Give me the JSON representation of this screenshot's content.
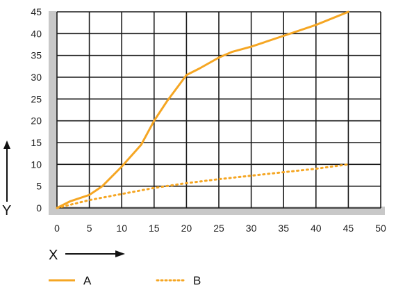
{
  "chart_data": {
    "type": "line",
    "xlabel": "X",
    "ylabel": "Y",
    "xlim": [
      0,
      50
    ],
    "ylim": [
      0,
      45
    ],
    "x_ticks": [
      0,
      5,
      10,
      15,
      20,
      25,
      30,
      35,
      40,
      45,
      50
    ],
    "y_ticks": [
      0,
      5,
      10,
      15,
      20,
      25,
      30,
      35,
      40,
      45
    ],
    "grid": true,
    "legend_position": "bottom",
    "series": [
      {
        "name": "A",
        "style": "solid",
        "color": "#f5a623",
        "x": [
          0,
          2,
          5,
          7,
          10,
          13,
          15,
          17,
          20,
          22,
          25,
          27,
          30,
          35,
          40,
          45
        ],
        "y": [
          0,
          1.5,
          3,
          5,
          9.5,
          14.5,
          20,
          24.5,
          30.5,
          32,
          34.5,
          35.8,
          37,
          39.5,
          42,
          45
        ]
      },
      {
        "name": "B",
        "style": "dotted",
        "color": "#f5a623",
        "x": [
          0,
          5,
          10,
          15,
          20,
          25,
          30,
          35,
          40,
          45
        ],
        "y": [
          0,
          1.8,
          3.2,
          4.6,
          5.7,
          6.6,
          7.4,
          8.2,
          9.0,
          10
        ]
      }
    ]
  }
}
